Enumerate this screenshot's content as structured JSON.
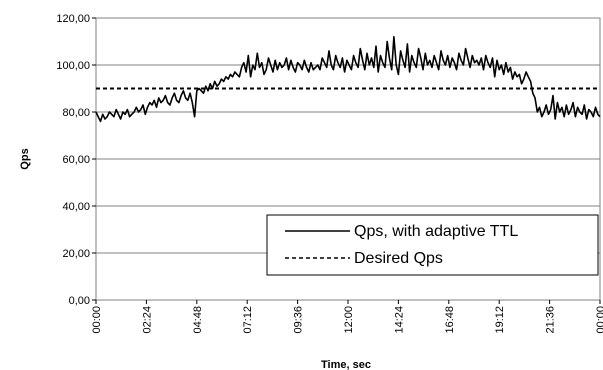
{
  "chart_data": {
    "type": "line",
    "title": "",
    "xlabel": "Time, sec",
    "ylabel": "Qps",
    "ylim": [
      0,
      120
    ],
    "y_ticks": [
      "0,00",
      "20,00",
      "40,00",
      "60,00",
      "80,00",
      "100,00",
      "120,00"
    ],
    "x_ticks": [
      "00:00",
      "02:24",
      "04:48",
      "07:12",
      "09:36",
      "12:00",
      "14:24",
      "16:48",
      "19:12",
      "21:36",
      "00:00"
    ],
    "grid": "horizontal",
    "legend_position": "bottom-right",
    "series": [
      {
        "name": "Qps, with adaptive TTL",
        "style": "solid",
        "color": "#000000",
        "x_step_minutes": 0.4,
        "values": [
          80,
          78,
          76,
          79,
          77,
          78,
          80,
          79,
          78,
          81,
          79,
          77,
          80,
          79,
          81,
          78,
          79,
          80,
          82,
          80,
          81,
          83,
          79,
          82,
          84,
          83,
          85,
          82,
          86,
          84,
          85,
          87,
          84,
          83,
          86,
          88,
          85,
          84,
          87,
          89,
          86,
          85,
          88,
          84,
          78,
          89,
          90,
          89,
          88,
          91,
          89,
          92,
          90,
          93,
          91,
          92,
          94,
          93,
          95,
          94,
          96,
          95,
          97,
          96,
          95,
          99,
          101,
          97,
          104,
          95,
          100,
          98,
          105,
          99,
          101,
          96,
          98,
          103,
          100,
          97,
          102,
          98,
          101,
          99,
          100,
          103,
          98,
          102,
          99,
          97,
          101,
          100,
          98,
          102,
          99,
          97,
          101,
          98,
          99,
          100,
          98,
          103,
          101,
          99,
          106,
          100,
          98,
          104,
          101,
          99,
          103,
          97,
          102,
          100,
          98,
          104,
          101,
          99,
          107,
          102,
          98,
          105,
          100,
          103,
          99,
          108,
          97,
          104,
          101,
          99,
          110,
          103,
          98,
          112,
          100,
          96,
          106,
          102,
          99,
          109,
          97,
          104,
          101,
          99,
          107,
          103,
          98,
          105,
          100,
          102,
          99,
          104,
          101,
          98,
          106,
          102,
          100,
          104,
          99,
          103,
          101,
          98,
          105,
          102,
          100,
          107,
          103,
          99,
          104,
          101,
          102,
          100,
          103,
          98,
          104,
          101,
          99,
          103,
          95,
          102,
          98,
          100,
          96,
          101,
          97,
          99,
          94,
          97,
          95,
          96,
          92,
          94,
          97,
          95,
          93,
          88,
          86,
          80,
          82,
          78,
          80,
          83,
          79,
          81,
          87,
          77,
          84,
          80,
          82,
          78,
          83,
          79,
          81,
          84,
          78,
          82,
          80,
          79,
          83,
          77,
          81,
          80,
          78,
          82,
          79,
          78
        ]
      },
      {
        "name": "Desired Qps",
        "style": "dashed",
        "color": "#000000",
        "values": [
          90,
          90
        ]
      }
    ]
  }
}
